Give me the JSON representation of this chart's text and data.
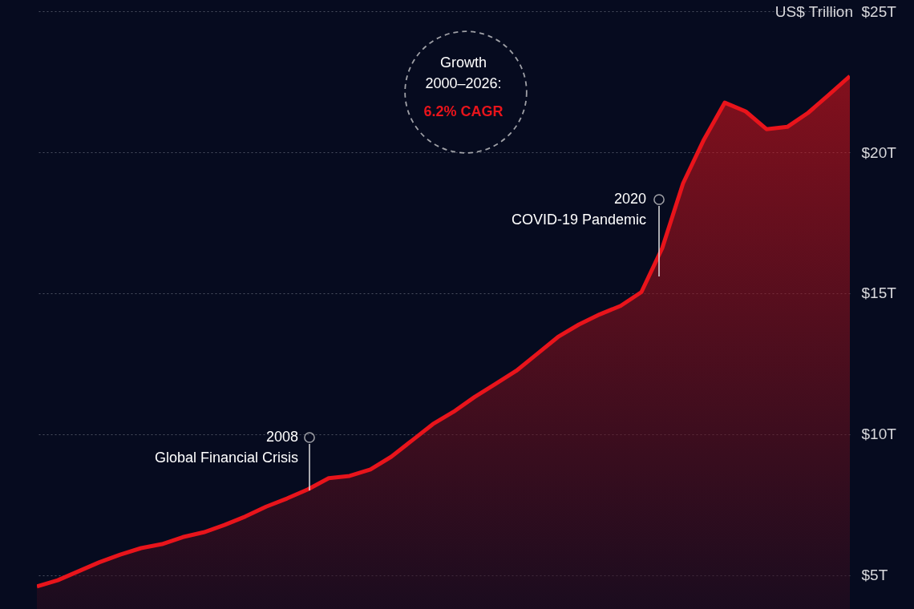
{
  "chart_data": {
    "type": "area",
    "ylabel": "US$ Trillion",
    "categories": [
      null,
      null,
      null,
      null,
      null,
      null,
      null,
      null,
      null,
      null,
      null,
      null,
      null,
      null,
      null,
      null,
      null,
      null,
      null,
      null,
      null,
      null,
      null,
      null,
      null,
      null,
      null,
      null,
      null,
      null,
      null,
      null,
      null,
      null,
      null,
      null,
      null,
      null,
      null,
      null
    ],
    "series": [
      {
        "color": "#e8141b",
        "values": [
          4.6,
          4.82,
          5.14,
          5.46,
          5.73,
          5.96,
          6.1,
          6.35,
          6.52,
          6.78,
          7.08,
          7.43,
          7.72,
          8.04,
          8.44,
          8.52,
          8.75,
          9.2,
          9.78,
          10.36,
          10.8,
          11.32,
          11.78,
          12.25,
          12.85,
          13.45,
          13.89,
          14.25,
          14.55,
          15.04,
          16.6,
          18.9,
          20.45,
          21.76,
          21.45,
          20.82,
          20.9,
          21.4,
          22.04,
          22.7
        ]
      }
    ],
    "ylim": [
      3.8,
      25.4
    ],
    "yticks": [
      {
        "value": 5,
        "label": "$5T"
      },
      {
        "value": 10,
        "label": "$10T"
      },
      {
        "value": 15,
        "label": "$15T"
      },
      {
        "value": 20,
        "label": "$20T"
      },
      {
        "value": 25,
        "label": "$25T"
      }
    ],
    "grid": "y",
    "tick_labels": "y",
    "annotations": [
      "Growth\n2000–2026:",
      "6.2% CAGR",
      "2020\nCOVID-19 Pandemic",
      "2008\nGlobal Financial Crisis"
    ]
  }
}
